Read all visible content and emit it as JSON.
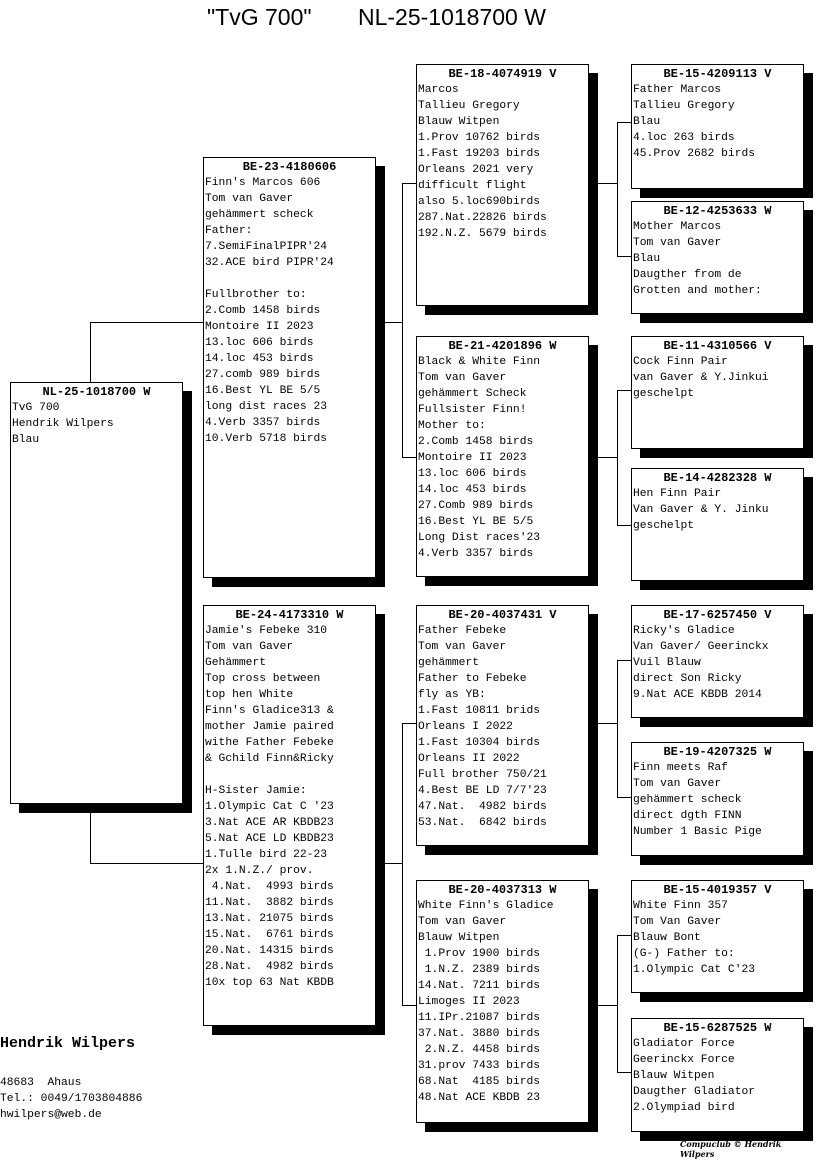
{
  "header": {
    "name": "\"TvG 700\"",
    "ring": "NL-25-1018700 W"
  },
  "birds": {
    "subject": {
      "ring": "NL-25-1018700 W",
      "lines": [
        "TvG 700",
        "Hendrik Wilpers",
        "Blau"
      ]
    },
    "father": {
      "ring": "BE-23-4180606",
      "lines": [
        "Finn's Marcos 606",
        "Tom van Gaver",
        "gehämmert scheck",
        "Father:",
        "7.SemiFinalPIPR'24",
        "32.ACE bird PIPR'24",
        "",
        "Fullbrother to:",
        "2.Comb 1458 birds",
        "Montoire II 2023",
        "13.loc 606 birds",
        "14.loc 453 birds",
        "27.comb 989 birds",
        "16.Best YL BE 5/5",
        "long dist races 23",
        "4.Verb 3357 birds",
        "10.Verb 5718 birds"
      ]
    },
    "mother": {
      "ring": "BE-24-4173310 W",
      "lines": [
        "Jamie's Febeke 310",
        "Tom van Gaver",
        "Gehämmert",
        "Top cross between",
        "top hen White",
        "Finn's Gladice313 &",
        "mother Jamie paired",
        "withe Father Febeke",
        "& Gchild Finn&Ricky",
        "",
        "H-Sister Jamie:",
        "1.Olympic Cat C '23",
        "3.Nat ACE AR KBDB23",
        "5.Nat ACE LD KBDB23",
        "1.Tulle bird 22-23",
        "2x 1.N.Z./ prov.",
        " 4.Nat.  4993 birds",
        "11.Nat.  3882 birds",
        "13.Nat. 21075 birds",
        "15.Nat.  6761 birds",
        "20.Nat. 14315 birds",
        "28.Nat.  4982 birds",
        "10x top 63 Nat KBDB"
      ]
    },
    "ff": {
      "ring": "BE-18-4074919 V",
      "lines": [
        "Marcos",
        "Tallieu Gregory",
        "Blauw Witpen",
        "1.Prov 10762 birds",
        "1.Fast 19203 birds",
        "Orleans 2021 very",
        "difficult flight",
        "also 5.loc690birds",
        "287.Nat.22826 birds",
        "192.N.Z. 5679 birds"
      ]
    },
    "fm": {
      "ring": "BE-21-4201896 W",
      "lines": [
        "Black & White Finn",
        "Tom van Gaver",
        "gehämmert Scheck",
        "Fullsister Finn!",
        "Mother to:",
        "2.Comb 1458 birds",
        "Montoire II 2023",
        "13.loc 606 birds",
        "14.loc 453 birds",
        "27.Comb 989 birds",
        "16.Best YL BE 5/5",
        "Long Dist races'23",
        "4.Verb 3357 birds"
      ]
    },
    "mf": {
      "ring": "BE-20-4037431 V",
      "lines": [
        "Father Febeke",
        "Tom van Gaver",
        "gehämmert",
        "Father to Febeke",
        "fly as YB:",
        "1.Fast 10811 brids",
        "Orleans I 2022",
        "1.Fast 10304 birds",
        "Orleans II 2022",
        "Full brother 750/21",
        "4.Best BE LD 7/7'23",
        "47.Nat.  4982 birds",
        "53.Nat.  6842 birds"
      ]
    },
    "mm": {
      "ring": "BE-20-4037313 W",
      "lines": [
        "White Finn's Gladice",
        "Tom van Gaver",
        "Blauw Witpen",
        " 1.Prov 1900 birds",
        " 1.N.Z. 2389 birds",
        "14.Nat. 7211 birds",
        "Limoges II 2023",
        "11.IPr.21087 birds",
        "37.Nat. 3880 birds",
        " 2.N.Z. 4458 birds",
        "31.prov 7433 birds",
        "68.Nat  4185 birds",
        "48.Nat ACE KBDB 23"
      ]
    },
    "fff": {
      "ring": "BE-15-4209113 V",
      "lines": [
        "Father Marcos",
        "Tallieu Gregory",
        "Blau",
        "4.loc 263 birds",
        "45.Prov 2682 birds"
      ]
    },
    "ffm": {
      "ring": "BE-12-4253633 W",
      "lines": [
        "Mother Marcos",
        "Tom van Gaver",
        "Blau",
        "Daugther from de",
        "Grotten and mother:"
      ]
    },
    "fmf": {
      "ring": "BE-11-4310566 V",
      "lines": [
        "Cock Finn Pair",
        "van Gaver & Y.Jinkui",
        "geschelpt"
      ]
    },
    "fmm": {
      "ring": "BE-14-4282328 W",
      "lines": [
        "Hen Finn Pair",
        "Van Gaver & Y. Jinku",
        "geschelpt"
      ]
    },
    "mff": {
      "ring": "BE-17-6257450 V",
      "lines": [
        "Ricky's Gladice",
        "Van Gaver/ Geerinckx",
        "Vuil Blauw",
        "direct Son Ricky",
        "9.Nat ACE KBDB 2014"
      ]
    },
    "mfm": {
      "ring": "BE-19-4207325 W",
      "lines": [
        "Finn meets Raf",
        "Tom van Gaver",
        "gehämmert scheck",
        "direct dgth FINN",
        "Number 1 Basic Pige"
      ]
    },
    "mmf": {
      "ring": "BE-15-4019357 V",
      "lines": [
        "White Finn 357",
        "Tom Van Gaver",
        "Blauw Bont",
        "(G-) Father to:",
        "1.Olympic Cat C'23"
      ]
    },
    "mmm": {
      "ring": "BE-15-6287525 W",
      "lines": [
        "Gladiator Force",
        "Geerinckx Force",
        "Blauw Witpen",
        "Daugther Gladiator",
        "2.Olympiad bird"
      ]
    }
  },
  "owner": {
    "name": "Hendrik Wilpers",
    "city": "48683  Ahaus",
    "phone": "Tel.: 0049/1703804886",
    "email": "hwilpers@web.de"
  },
  "footer": "Compuclub © Hendrik Wilpers"
}
